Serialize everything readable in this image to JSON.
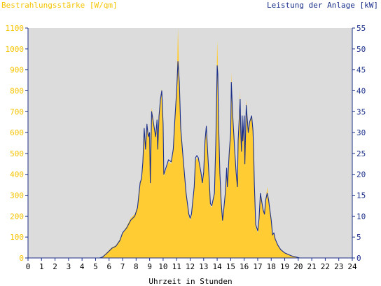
{
  "chart_data": {
    "type": "area",
    "left_axis_title": "Bestrahlungsstärke [W/qm]",
    "right_axis_title": "Leistung der Anlage [kW]",
    "xlabel": "Uhrzeit in Stunden",
    "xlim": [
      0,
      24
    ],
    "x_ticks": [
      0,
      1,
      2,
      3,
      4,
      5,
      6,
      7,
      8,
      9,
      10,
      11,
      12,
      13,
      14,
      15,
      16,
      17,
      18,
      19,
      20,
      21,
      22,
      23,
      24
    ],
    "y_left_lim": [
      0,
      1100
    ],
    "y_left_ticks": [
      0,
      100,
      200,
      300,
      400,
      500,
      600,
      700,
      800,
      900,
      1000,
      1100
    ],
    "y_right_lim": [
      0,
      55
    ],
    "y_right_ticks": [
      0,
      5,
      10,
      15,
      20,
      25,
      30,
      35,
      40,
      45,
      50,
      55
    ],
    "grid": false,
    "colors": {
      "plot_background": "#dcdcdc",
      "irradiance_fill": "#ffcc33",
      "irradiance_label": "#f5c400",
      "power_line": "#1a2f8a",
      "axis": "#1a2f8a"
    },
    "series": [
      {
        "axis": "left",
        "style": "filled-area",
        "points": [
          [
            0,
            0
          ],
          [
            5.3,
            0
          ],
          [
            5.5,
            5
          ],
          [
            5.8,
            25
          ],
          [
            6.2,
            50
          ],
          [
            6.5,
            60
          ],
          [
            6.8,
            90
          ],
          [
            7,
            120
          ],
          [
            7.3,
            150
          ],
          [
            7.6,
            190
          ],
          [
            7.9,
            210
          ],
          [
            8.1,
            250
          ],
          [
            8.3,
            360
          ],
          [
            8.4,
            380
          ],
          [
            8.5,
            480
          ],
          [
            8.6,
            610
          ],
          [
            8.7,
            500
          ],
          [
            8.8,
            640
          ],
          [
            8.9,
            580
          ],
          [
            9,
            600
          ],
          [
            9.05,
            330
          ],
          [
            9.15,
            720
          ],
          [
            9.3,
            650
          ],
          [
            9.45,
            580
          ],
          [
            9.55,
            680
          ],
          [
            9.6,
            510
          ],
          [
            9.7,
            690
          ],
          [
            9.8,
            770
          ],
          [
            9.9,
            810
          ],
          [
            10,
            650
          ],
          [
            10.05,
            390
          ],
          [
            10.2,
            420
          ],
          [
            10.4,
            460
          ],
          [
            10.6,
            450
          ],
          [
            10.75,
            520
          ],
          [
            10.85,
            640
          ],
          [
            11,
            800
          ],
          [
            11.1,
            1100
          ],
          [
            11.2,
            850
          ],
          [
            11.3,
            600
          ],
          [
            11.5,
            450
          ],
          [
            11.7,
            300
          ],
          [
            11.9,
            200
          ],
          [
            12,
            180
          ],
          [
            12.1,
            200
          ],
          [
            12.3,
            330
          ],
          [
            12.4,
            460
          ],
          [
            12.5,
            480
          ],
          [
            12.6,
            470
          ],
          [
            12.8,
            400
          ],
          [
            12.9,
            350
          ],
          [
            13,
            400
          ],
          [
            13.1,
            560
          ],
          [
            13.2,
            600
          ],
          [
            13.3,
            500
          ],
          [
            13.4,
            380
          ],
          [
            13.5,
            250
          ],
          [
            13.6,
            240
          ],
          [
            13.8,
            300
          ],
          [
            13.9,
            550
          ],
          [
            14,
            1040
          ],
          [
            14.05,
            950
          ],
          [
            14.1,
            650
          ],
          [
            14.2,
            400
          ],
          [
            14.3,
            250
          ],
          [
            14.4,
            170
          ],
          [
            14.5,
            230
          ],
          [
            14.6,
            300
          ],
          [
            14.7,
            420
          ],
          [
            14.75,
            330
          ],
          [
            14.8,
            380
          ],
          [
            14.9,
            500
          ],
          [
            15,
            600
          ],
          [
            15.05,
            890
          ],
          [
            15.15,
            680
          ],
          [
            15.3,
            500
          ],
          [
            15.4,
            400
          ],
          [
            15.5,
            330
          ],
          [
            15.55,
            560
          ],
          [
            15.6,
            620
          ],
          [
            15.7,
            800
          ],
          [
            15.75,
            600
          ],
          [
            15.8,
            500
          ],
          [
            15.85,
            690
          ],
          [
            15.9,
            560
          ],
          [
            16,
            680
          ],
          [
            16.05,
            440
          ],
          [
            16.15,
            760
          ],
          [
            16.3,
            600
          ],
          [
            16.4,
            650
          ],
          [
            16.55,
            680
          ],
          [
            16.65,
            610
          ],
          [
            16.7,
            500
          ],
          [
            16.75,
            350
          ],
          [
            16.85,
            150
          ],
          [
            17,
            120
          ],
          [
            17.1,
            180
          ],
          [
            17.2,
            310
          ],
          [
            17.3,
            270
          ],
          [
            17.4,
            230
          ],
          [
            17.5,
            210
          ],
          [
            17.6,
            280
          ],
          [
            17.7,
            340
          ],
          [
            17.8,
            290
          ],
          [
            17.9,
            230
          ],
          [
            18,
            180
          ],
          [
            18.1,
            110
          ],
          [
            18.2,
            120
          ],
          [
            18.3,
            90
          ],
          [
            18.5,
            60
          ],
          [
            18.7,
            40
          ],
          [
            19,
            25
          ],
          [
            19.5,
            10
          ],
          [
            20,
            2
          ],
          [
            20.1,
            0
          ],
          [
            24,
            0
          ]
        ]
      },
      {
        "axis": "right",
        "style": "line",
        "points": [
          [
            0,
            0
          ],
          [
            5.3,
            0
          ],
          [
            5.5,
            0.2
          ],
          [
            5.8,
            1
          ],
          [
            6.2,
            2.3
          ],
          [
            6.5,
            2.8
          ],
          [
            6.8,
            4.2
          ],
          [
            7,
            6
          ],
          [
            7.3,
            7.2
          ],
          [
            7.6,
            9
          ],
          [
            7.9,
            10
          ],
          [
            8.1,
            12
          ],
          [
            8.3,
            18
          ],
          [
            8.4,
            19
          ],
          [
            8.5,
            23
          ],
          [
            8.6,
            31
          ],
          [
            8.7,
            26
          ],
          [
            8.8,
            32
          ],
          [
            8.9,
            29
          ],
          [
            9,
            30
          ],
          [
            9.05,
            18
          ],
          [
            9.15,
            35
          ],
          [
            9.3,
            32
          ],
          [
            9.45,
            29
          ],
          [
            9.55,
            33
          ],
          [
            9.6,
            26
          ],
          [
            9.7,
            34
          ],
          [
            9.8,
            38
          ],
          [
            9.9,
            40
          ],
          [
            10,
            32
          ],
          [
            10.05,
            20
          ],
          [
            10.2,
            21.5
          ],
          [
            10.4,
            23.5
          ],
          [
            10.6,
            23
          ],
          [
            10.75,
            26
          ],
          [
            10.85,
            32
          ],
          [
            11,
            40
          ],
          [
            11.1,
            47
          ],
          [
            11.2,
            42
          ],
          [
            11.3,
            31
          ],
          [
            11.5,
            23
          ],
          [
            11.7,
            15.5
          ],
          [
            11.9,
            10.5
          ],
          [
            12,
            9.5
          ],
          [
            12.1,
            10.5
          ],
          [
            12.3,
            17
          ],
          [
            12.4,
            24
          ],
          [
            12.5,
            24.5
          ],
          [
            12.6,
            24
          ],
          [
            12.8,
            20.5
          ],
          [
            12.9,
            18
          ],
          [
            13,
            20.5
          ],
          [
            13.1,
            28
          ],
          [
            13.2,
            31.5
          ],
          [
            13.3,
            25
          ],
          [
            13.4,
            19.5
          ],
          [
            13.5,
            13
          ],
          [
            13.6,
            12.5
          ],
          [
            13.8,
            15.5
          ],
          [
            13.9,
            28
          ],
          [
            14,
            46
          ],
          [
            14.05,
            44
          ],
          [
            14.1,
            33
          ],
          [
            14.2,
            20.5
          ],
          [
            14.3,
            13
          ],
          [
            14.4,
            9
          ],
          [
            14.5,
            12
          ],
          [
            14.6,
            15.5
          ],
          [
            14.7,
            21.5
          ],
          [
            14.75,
            17
          ],
          [
            14.8,
            19.5
          ],
          [
            14.9,
            25.5
          ],
          [
            15,
            30
          ],
          [
            15.05,
            42
          ],
          [
            15.15,
            34
          ],
          [
            15.3,
            25.5
          ],
          [
            15.4,
            20.5
          ],
          [
            15.5,
            17
          ],
          [
            15.55,
            28
          ],
          [
            15.6,
            31
          ],
          [
            15.7,
            38
          ],
          [
            15.75,
            30
          ],
          [
            15.8,
            25.5
          ],
          [
            15.85,
            34
          ],
          [
            15.9,
            28
          ],
          [
            16,
            34
          ],
          [
            16.05,
            22.5
          ],
          [
            16.15,
            36.5
          ],
          [
            16.3,
            30
          ],
          [
            16.4,
            32.5
          ],
          [
            16.55,
            34
          ],
          [
            16.65,
            30.5
          ],
          [
            16.7,
            25.5
          ],
          [
            16.75,
            18
          ],
          [
            16.85,
            8
          ],
          [
            17,
            6.5
          ],
          [
            17.1,
            9.5
          ],
          [
            17.2,
            15.5
          ],
          [
            17.3,
            13.5
          ],
          [
            17.4,
            11.5
          ],
          [
            17.5,
            10.5
          ],
          [
            17.6,
            14
          ],
          [
            17.7,
            15.5
          ],
          [
            17.8,
            14
          ],
          [
            17.9,
            11.5
          ],
          [
            18,
            9
          ],
          [
            18.1,
            5.5
          ],
          [
            18.2,
            6
          ],
          [
            18.3,
            4.5
          ],
          [
            18.5,
            3
          ],
          [
            18.7,
            2
          ],
          [
            19,
            1.2
          ],
          [
            19.5,
            0.5
          ],
          [
            20,
            0.1
          ],
          [
            20.1,
            0
          ],
          [
            24,
            0
          ]
        ]
      }
    ]
  }
}
